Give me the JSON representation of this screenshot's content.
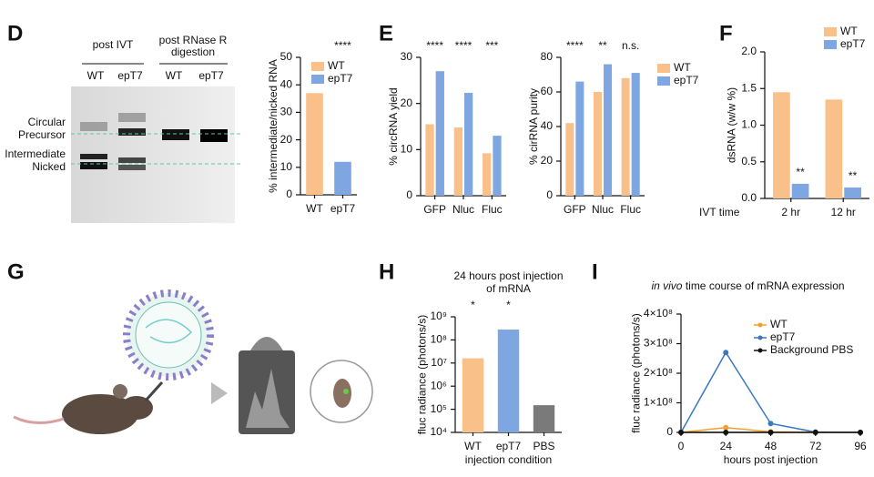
{
  "figure": {
    "panel_g": "G",
    "gel": {
      "headers": [
        [
          "post IVT"
        ],
        [
          "post RNase R",
          "digestion"
        ]
      ],
      "lanes": [
        "WT",
        "epT7",
        "WT",
        "epT7"
      ],
      "bands": [
        "Circular",
        "Precursor",
        "Intermediate",
        "Nicked"
      ]
    }
  },
  "chart_data": [
    {
      "type": "bar",
      "panel": "D",
      "ylabel": "% intermediate/nicked RNA",
      "categories": [
        "WT",
        "epT7"
      ],
      "values": [
        37,
        12
      ],
      "colors": [
        "#f9c189",
        "#7ea6e0"
      ],
      "legend": [
        {
          "name": "WT",
          "color": "#f9c189"
        },
        {
          "name": "epT7",
          "color": "#7ea6e0"
        }
      ],
      "legend_position": "upper right",
      "significance": [
        "****"
      ],
      "ylim": [
        0,
        50
      ],
      "yticks": [
        0,
        10,
        20,
        30,
        40,
        50
      ]
    },
    {
      "type": "grouped-bar",
      "panel": "E",
      "ylabel": "% circRNA yield",
      "categories": [
        "GFP",
        "Nluc",
        "Fluc"
      ],
      "series": [
        {
          "name": "WT",
          "color": "#f9c189",
          "values": [
            15.5,
            14.8,
            9.2
          ]
        },
        {
          "name": "epT7",
          "color": "#7ea6e0",
          "values": [
            27,
            22.3,
            13
          ]
        }
      ],
      "significance": [
        "****",
        "****",
        "***"
      ],
      "ylim": [
        0,
        30
      ],
      "yticks": [
        0,
        10,
        20,
        30
      ]
    },
    {
      "type": "grouped-bar",
      "ylabel": "% cirRNA purity",
      "categories": [
        "GFP",
        "Nluc",
        "Fluc"
      ],
      "series": [
        {
          "name": "WT",
          "color": "#f9c189",
          "values": [
            42,
            60,
            68
          ]
        },
        {
          "name": "epT7",
          "color": "#7ea6e0",
          "values": [
            66,
            76,
            71
          ]
        }
      ],
      "legend_position": "outside right",
      "significance": [
        "****",
        "**",
        "n.s."
      ],
      "ylim": [
        0,
        80
      ],
      "yticks": [
        0,
        20,
        40,
        60,
        80
      ]
    },
    {
      "type": "grouped-bar",
      "panel": "F",
      "ylabel": "dsRNA (w/w %)",
      "xlabel": "IVT time",
      "categories": [
        "2 hr",
        "12 hr"
      ],
      "series": [
        {
          "name": "WT",
          "color": "#f9c189",
          "values": [
            1.45,
            1.35
          ]
        },
        {
          "name": "epT7",
          "color": "#7ea6e0",
          "values": [
            0.2,
            0.15
          ]
        }
      ],
      "legend_position": "top",
      "significance": [
        "**",
        "**"
      ],
      "ylim": [
        0,
        2
      ],
      "yticks": [
        {
          "value": 0,
          "label": "0.0"
        },
        0.5,
        {
          "value": 1,
          "label": "1.0"
        },
        1.5,
        {
          "value": 2,
          "label": "2.0"
        }
      ]
    },
    {
      "type": "bar",
      "panel": "H",
      "title": [
        "24 hours post injection",
        "of mRNA"
      ],
      "ylabel": "fluc radiance (photons/s)",
      "xlabel": "injection condition",
      "categories": [
        "WT",
        "epT7",
        "PBS"
      ],
      "values": [
        16000000,
        280000000,
        150000
      ],
      "colors": [
        "#f9c189",
        "#7ea6e0",
        "#7a7a7a"
      ],
      "significance": [
        "*",
        "*",
        null
      ],
      "log": true,
      "ylim": [
        10000,
        1000000000
      ],
      "yticks": [
        {
          "value": 10000,
          "label": "10⁴"
        },
        {
          "value": 100000,
          "label": "10⁵"
        },
        {
          "value": 1000000,
          "label": "10⁶"
        },
        {
          "value": 10000000,
          "label": "10⁷"
        },
        {
          "value": 100000000,
          "label": "10⁸"
        },
        {
          "value": 1000000000,
          "label": "10⁹"
        }
      ]
    },
    {
      "type": "line",
      "panel": "I",
      "title_italic": "in vivo",
      "title": "time course of mRNA expression",
      "ylabel": "fluc radiance (photons/s)",
      "xlabel": "hours post injection",
      "x": [
        0,
        24,
        48,
        72,
        96
      ],
      "series": [
        {
          "name": "WT",
          "color": "#f0a030",
          "values": [
            0,
            16000000,
            2000000,
            0,
            0
          ]
        },
        {
          "name": "epT7",
          "color": "#3a78c0",
          "values": [
            0,
            270000000,
            30000000,
            1000000,
            0
          ]
        },
        {
          "name": "Background PBS",
          "color": "#111111",
          "values": [
            0,
            150000,
            150000,
            150000,
            0
          ]
        }
      ],
      "legend_position": "upper center",
      "xlim": [
        0,
        96
      ],
      "xticks": [
        0,
        24,
        48,
        72,
        96
      ],
      "ylim": [
        0,
        400000000
      ],
      "yticks": [
        0,
        {
          "value": 100000000,
          "label": "1×10⁸"
        },
        {
          "value": 200000000,
          "label": "2×10⁸"
        },
        {
          "value": 300000000,
          "label": "3×10⁸"
        },
        {
          "value": 400000000,
          "label": "4×10⁸"
        }
      ]
    }
  ]
}
